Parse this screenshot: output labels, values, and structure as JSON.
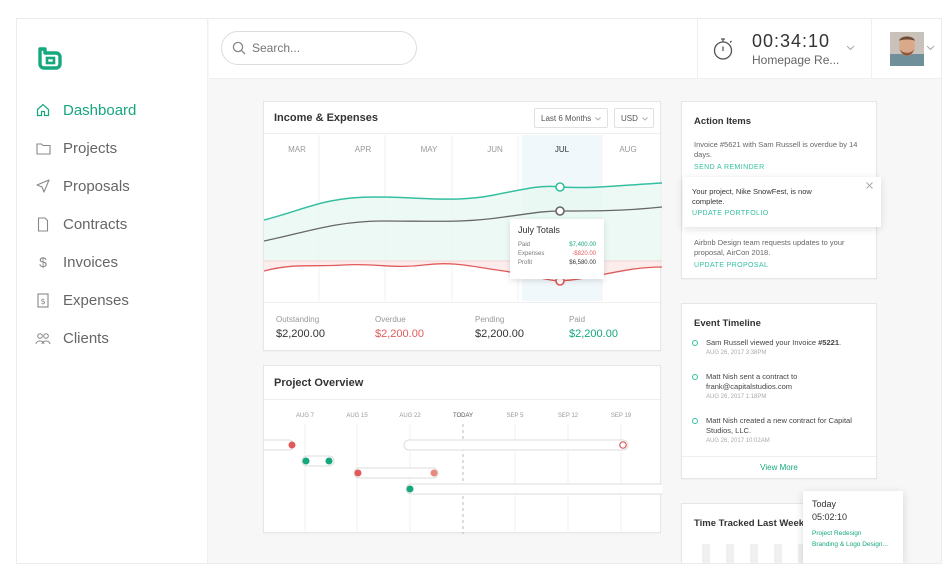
{
  "sidebar": {
    "items": [
      {
        "label": "Dashboard",
        "icon": "home-icon",
        "active": true
      },
      {
        "label": "Projects",
        "icon": "folder-icon"
      },
      {
        "label": "Proposals",
        "icon": "send-icon"
      },
      {
        "label": "Contracts",
        "icon": "document-icon"
      },
      {
        "label": "Invoices",
        "icon": "dollar-icon"
      },
      {
        "label": "Expenses",
        "icon": "receipt-icon"
      },
      {
        "label": "Clients",
        "icon": "users-icon"
      }
    ]
  },
  "header": {
    "search_placeholder": "Search...",
    "timer": {
      "time": "00:34:10",
      "project": "Homepage Re..."
    }
  },
  "income": {
    "title": "Income & Expenses",
    "range": "Last 6 Months",
    "currency": "USD",
    "months": [
      "MAR",
      "APR",
      "MAY",
      "JUN",
      "JUL",
      "AUG"
    ],
    "tooltip": {
      "title": "July Totals",
      "rows": [
        {
          "label": "Paid",
          "value": "$7,400.00"
        },
        {
          "label": "Expenses",
          "value": "-$820.00"
        },
        {
          "label": "Profit",
          "value": "$6,580.00"
        }
      ]
    },
    "stats": [
      {
        "label": "Outstanding",
        "value": "$2,200.00"
      },
      {
        "label": "Overdue",
        "value": "$2,200.00"
      },
      {
        "label": "Pending",
        "value": "$2,200.00"
      },
      {
        "label": "Paid",
        "value": "$2,200.00"
      }
    ]
  },
  "overview": {
    "title": "Project Overview",
    "dates": [
      "AUG 7",
      "AUG 15",
      "AUG 22",
      "TODAY",
      "SEP 5",
      "SEP 12",
      "SEP 19"
    ]
  },
  "actions": {
    "title": "Action Items",
    "items": [
      {
        "text": "Invoice #5621 with Sam Russell is overdue by 14 days.",
        "link": "SEND A REMINDER"
      },
      {
        "text": "Airbnb Design team requests updates to your proposal, AirCon 2018.",
        "link": "UPDATE PROPOSAL"
      }
    ],
    "notification": {
      "text": "Your project, Nike SnowFest, is now complete.",
      "link": "UPDATE PORTFOLIO"
    }
  },
  "events": {
    "title": "Event Timeline",
    "items": [
      {
        "text": "Sam Russell viewed your Invoice ",
        "bold": "#5221",
        "end": ".",
        "when": "AUG 26, 2017 3:38PM"
      },
      {
        "text": "Matt Nish sent a contract to frank@capitalstudios.com",
        "when": "AUG 26, 2017 1:18PM"
      },
      {
        "text": "Matt Nish created a new contract for Capital Studios, LLC.",
        "when": "AUG 26, 2017 10:02AM"
      }
    ],
    "view_more": "View More"
  },
  "tracked": {
    "title": "Time Tracked Last Week"
  },
  "today_popup": {
    "label": "Today",
    "time": "05:02:10",
    "project": "Project Redesign",
    "task": "Branding & Logo Design..."
  },
  "colors": {
    "accent": "#15a77e",
    "teal": "#35bfa0",
    "red": "#e15a5a",
    "gray_line": "#666666"
  }
}
